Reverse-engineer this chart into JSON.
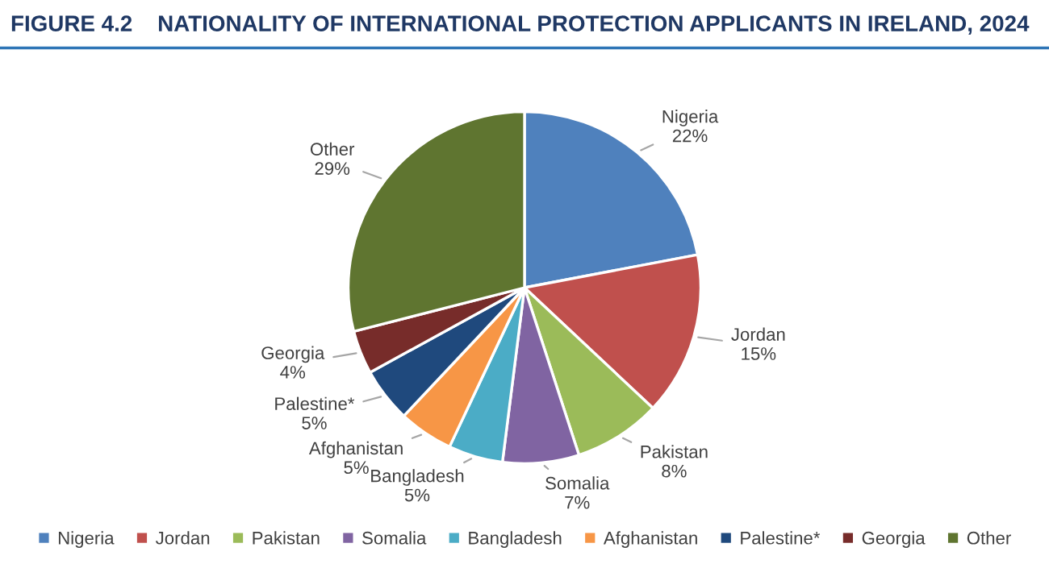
{
  "chart_data": {
    "type": "pie",
    "title": "FIGURE 4.2    NATIONALITY OF INTERNATIONAL PROTECTION APPLICANTS IN IRELAND, 2024",
    "categories": [
      "Nigeria",
      "Jordan",
      "Pakistan",
      "Somalia",
      "Bangladesh",
      "Afghanistan",
      "Palestine*",
      "Georgia",
      "Other"
    ],
    "values": [
      22,
      15,
      8,
      7,
      5,
      5,
      5,
      4,
      29
    ],
    "value_labels": [
      "22%",
      "15%",
      "8%",
      "7%",
      "5%",
      "5%",
      "5%",
      "4%",
      "29%"
    ],
    "colors": [
      "#4f81bd",
      "#c0504d",
      "#9bbb59",
      "#8064a2",
      "#4bacc6",
      "#f79646",
      "#1f497d",
      "#772c2a",
      "#5f7530"
    ],
    "legend": "bottom"
  }
}
